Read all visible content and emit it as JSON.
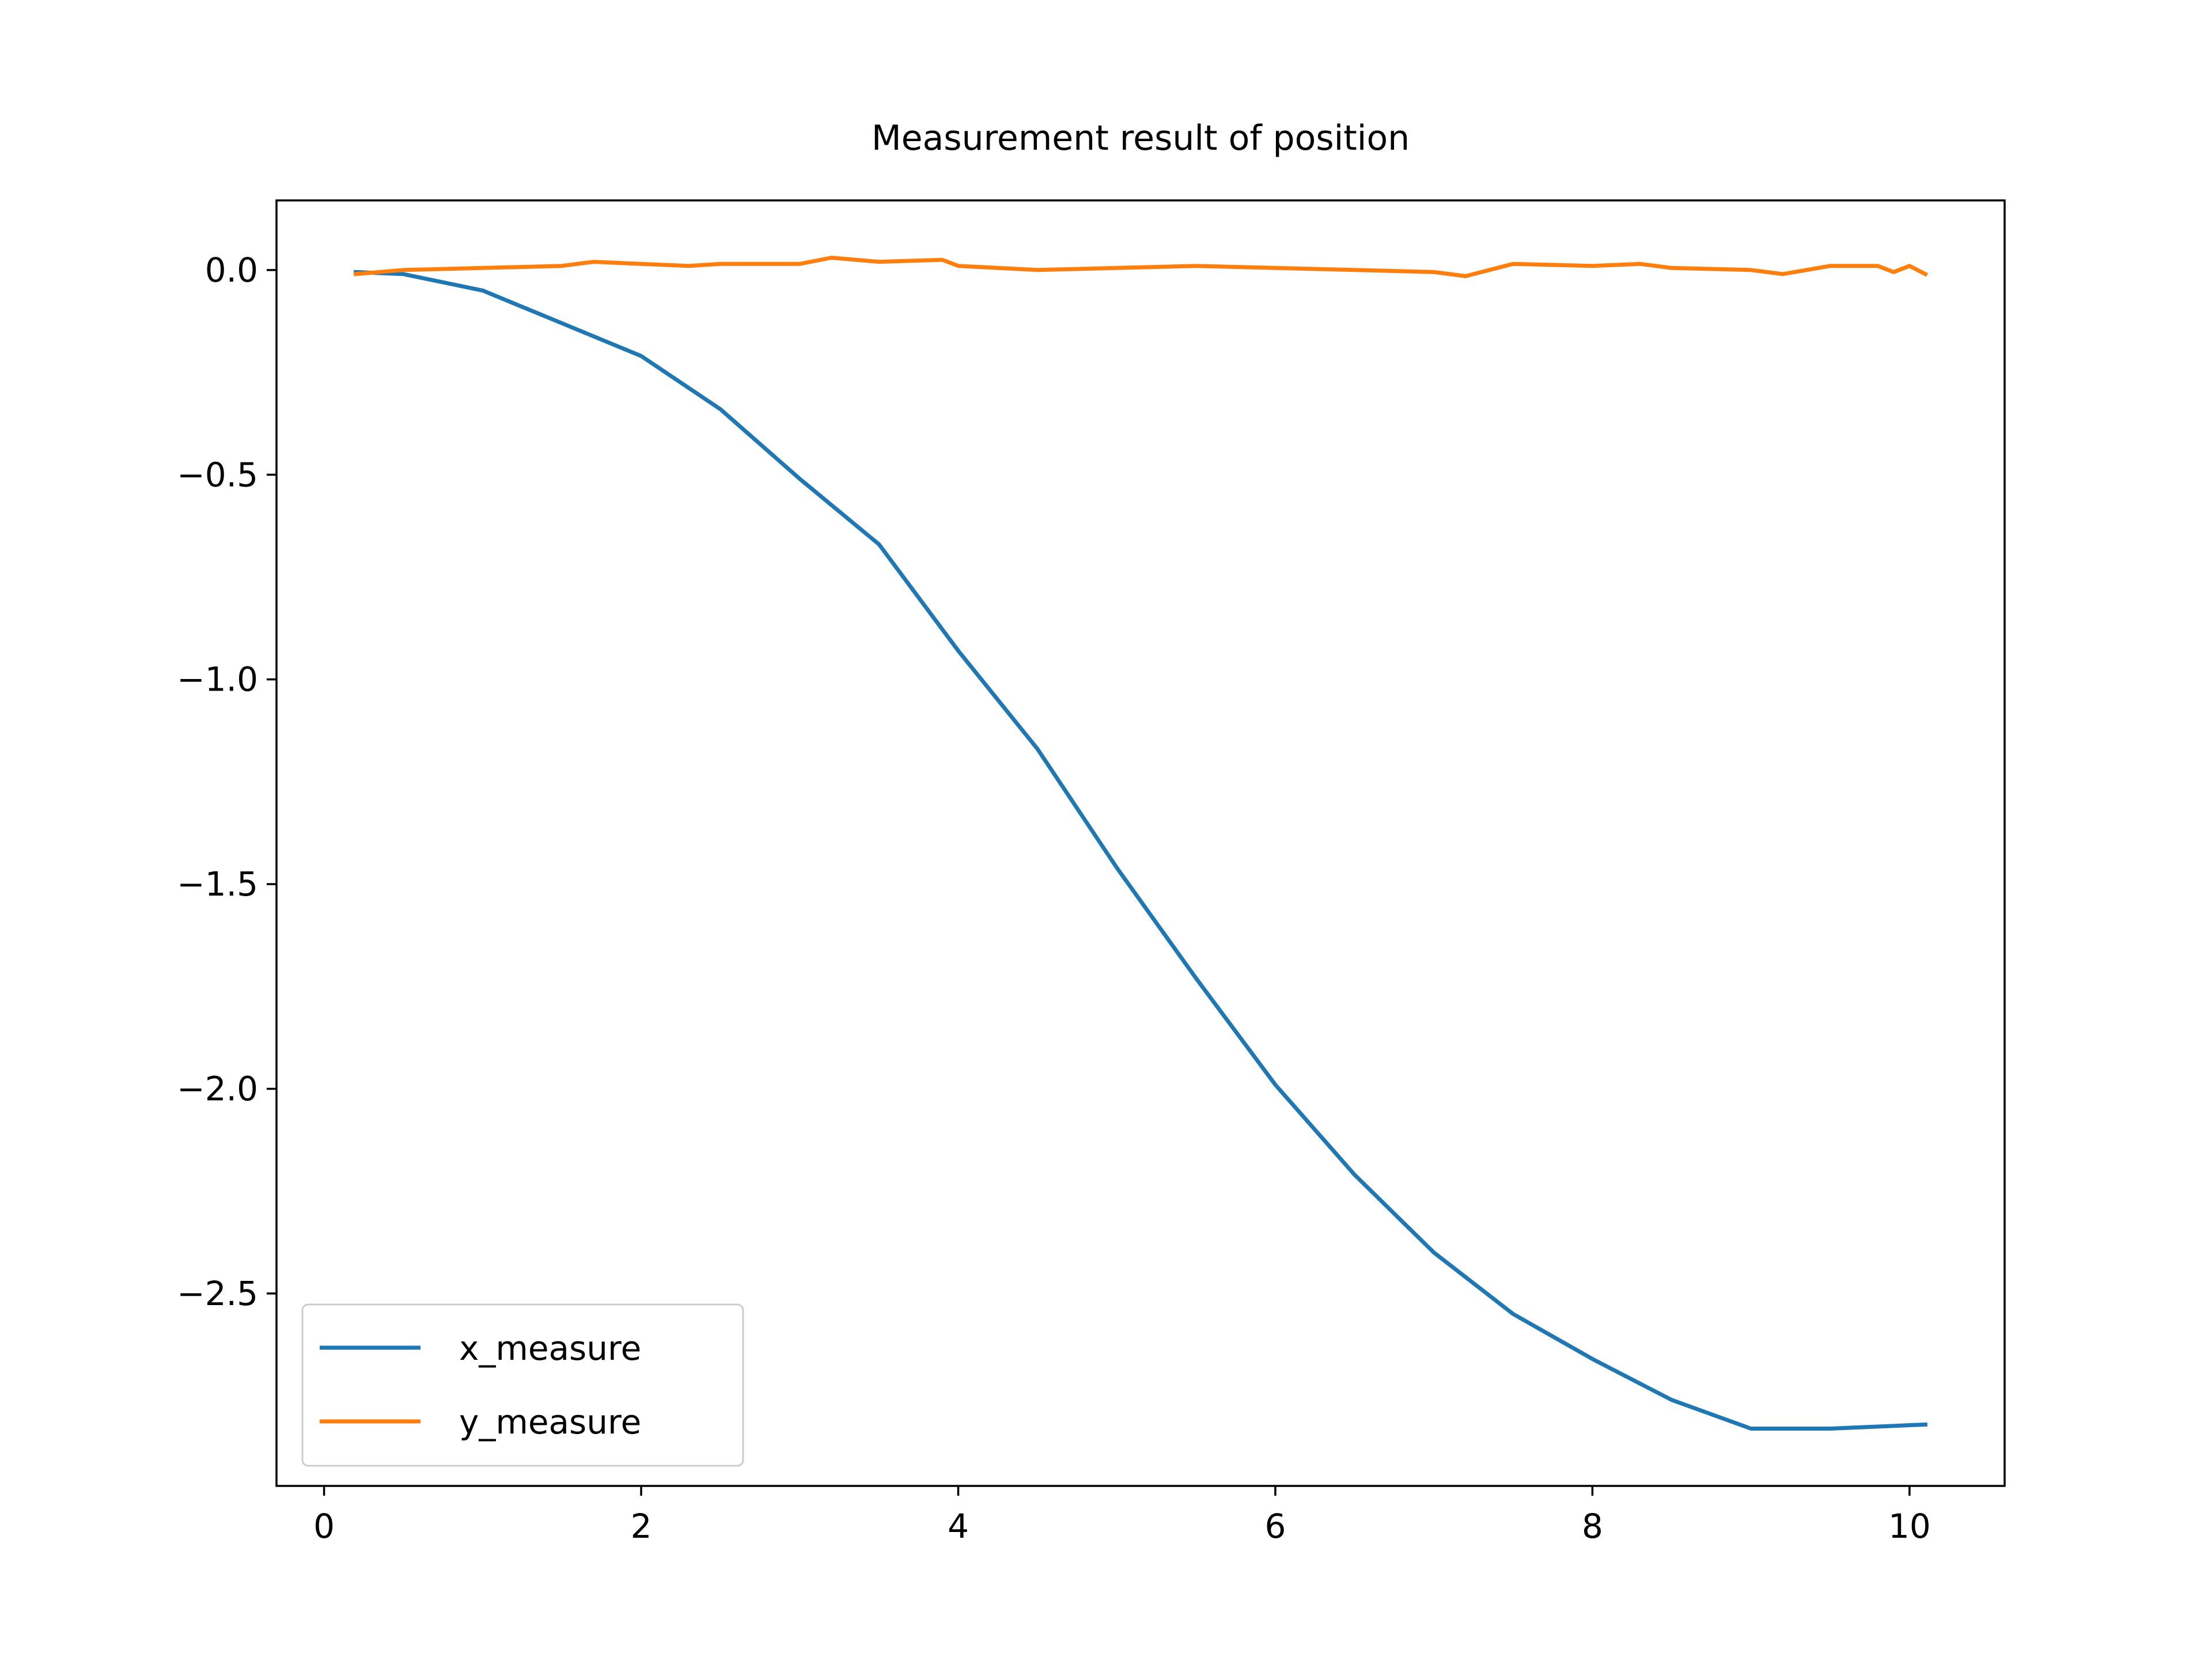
{
  "chart_data": {
    "type": "line",
    "title": "Measurement result of position",
    "xlabel": "",
    "ylabel": "",
    "xlim": [
      -0.3,
      10.6
    ],
    "ylim": [
      -2.97,
      0.17
    ],
    "xticks": [
      0,
      2,
      4,
      6,
      8,
      10
    ],
    "xtick_labels": [
      "0",
      "2",
      "4",
      "6",
      "8",
      "10"
    ],
    "yticks": [
      0.0,
      -0.5,
      -1.0,
      -1.5,
      -2.0,
      -2.5
    ],
    "ytick_labels": [
      "0.0",
      "−0.5",
      "−1.0",
      "−1.5",
      "−2.0",
      "−2.5"
    ],
    "grid": false,
    "legend_position": "lower-left",
    "series": [
      {
        "name": "x_measure",
        "color": "#1f77b4",
        "x": [
          0.2,
          0.5,
          1.0,
          1.5,
          2.0,
          2.5,
          3.0,
          3.5,
          4.0,
          4.5,
          5.0,
          5.5,
          6.0,
          6.5,
          7.0,
          7.5,
          8.0,
          8.5,
          9.0,
          9.5,
          10.1
        ],
        "y": [
          -0.005,
          -0.01,
          -0.05,
          -0.13,
          -0.21,
          -0.34,
          -0.51,
          -0.67,
          -0.93,
          -1.17,
          -1.46,
          -1.73,
          -1.99,
          -2.21,
          -2.4,
          -2.55,
          -2.66,
          -2.76,
          -2.83,
          -2.83,
          -2.82
        ]
      },
      {
        "name": "y_measure",
        "color": "#ff7f0e",
        "x": [
          0.2,
          0.5,
          1.0,
          1.5,
          1.7,
          2.0,
          2.3,
          2.5,
          3.0,
          3.2,
          3.5,
          3.9,
          4.0,
          4.5,
          5.0,
          5.5,
          6.0,
          6.5,
          7.0,
          7.2,
          7.5,
          8.0,
          8.3,
          8.5,
          9.0,
          9.2,
          9.5,
          9.8,
          9.9,
          10.0,
          10.1
        ],
        "y": [
          -0.01,
          0.0,
          0.005,
          0.01,
          0.02,
          0.015,
          0.01,
          0.015,
          0.015,
          0.03,
          0.02,
          0.025,
          0.01,
          0.0,
          0.005,
          0.01,
          0.005,
          0.0,
          -0.005,
          -0.015,
          0.015,
          0.01,
          0.015,
          0.005,
          0.0,
          -0.01,
          0.01,
          0.01,
          -0.005,
          0.01,
          -0.01
        ]
      }
    ]
  }
}
